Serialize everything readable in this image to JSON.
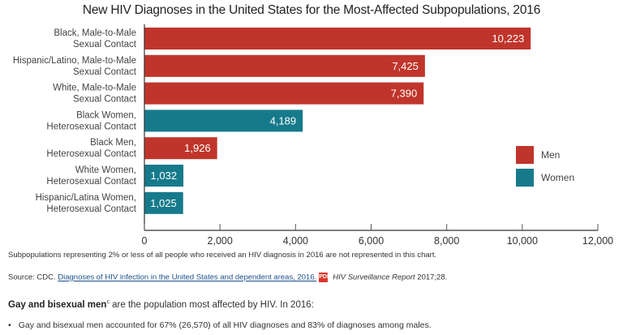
{
  "chart_data": {
    "type": "bar",
    "orientation": "horizontal",
    "title": "New HIV Diagnoses in the United States for the Most-Affected Subpopulations, 2016",
    "categories": [
      [
        "Black, Male-to-Male",
        "Sexual Contact"
      ],
      [
        "Hispanic/Latino, Male-to-Male",
        "Sexual Contact"
      ],
      [
        "White, Male-to-Male",
        "Sexual Contact"
      ],
      [
        "Black Women,",
        "Heterosexual Contact"
      ],
      [
        "Black Men,",
        "Heterosexual Contact"
      ],
      [
        "White Women,",
        "Heterosexual Contact"
      ],
      [
        "Hispanic/Latina Women,",
        "Heterosexual Contact"
      ]
    ],
    "values": [
      10223,
      7425,
      7390,
      4189,
      1926,
      1032,
      1025
    ],
    "value_labels": [
      "10,223",
      "7,425",
      "7,390",
      "4,189",
      "1,926",
      "1,032",
      "1,025"
    ],
    "groups": [
      "Men",
      "Men",
      "Men",
      "Women",
      "Men",
      "Women",
      "Women"
    ],
    "legend": [
      {
        "name": "Men",
        "color": "#c0352b"
      },
      {
        "name": "Women",
        "color": "#167a8b"
      }
    ],
    "legend_position": "right",
    "xlabel": "",
    "ylabel": "",
    "xlim": [
      0,
      12000
    ],
    "xticks": [
      0,
      2000,
      4000,
      6000,
      8000,
      10000,
      12000
    ],
    "xtick_labels": [
      "0",
      "2,000",
      "4,000",
      "6,000",
      "8,000",
      "10,000",
      "12,000"
    ],
    "grid": false
  },
  "notes": {
    "footnote": "Subpopulations representing 2% or less of all people who received an HIV diagnosis in 2016 are not represented in this chart.",
    "source_prefix": "Source: CDC. ",
    "source_link": "Diagnoses of HIV infection in the United States and dependent areas, 2016.",
    "pdf_icon": "pdf-icon",
    "report_title": "HIV Surveillance Report",
    "report_cite": " 2017;28."
  },
  "summary": {
    "bold": "Gay and bisexual men",
    "sup": "c",
    "rest": " are the population most affected by HIV. In 2016:",
    "bullets": [
      "Gay and bisexual men accounted for 67% (26,570) of all HIV diagnoses and 83% of diagnoses among males."
    ]
  }
}
